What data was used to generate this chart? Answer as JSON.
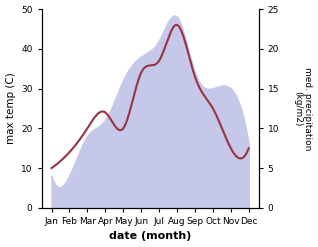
{
  "months": [
    "Jan",
    "Feb",
    "Mar",
    "Apr",
    "May",
    "Jun",
    "Jul",
    "Aug",
    "Sep",
    "Oct",
    "Nov",
    "Dec"
  ],
  "temp": [
    10,
    14,
    20,
    24,
    20,
    34,
    37,
    46,
    33,
    25,
    15,
    15
  ],
  "precip": [
    4,
    4,
    9,
    11,
    16,
    19,
    21,
    24,
    17,
    15,
    15,
    8
  ],
  "temp_color": "#993344",
  "precip_fill_color": "#c5c8e8",
  "bg_color": "#ffffff",
  "xlabel": "date (month)",
  "ylabel_left": "max temp (C)",
  "ylabel_right": "med. precipitation\n(kg/m2)",
  "ylim_left": [
    0,
    50
  ],
  "ylim_right": [
    0,
    25
  ],
  "yticks_left": [
    0,
    10,
    20,
    30,
    40,
    50
  ],
  "yticks_right": [
    0,
    5,
    10,
    15,
    20,
    25
  ],
  "precip_scale": 2.0
}
